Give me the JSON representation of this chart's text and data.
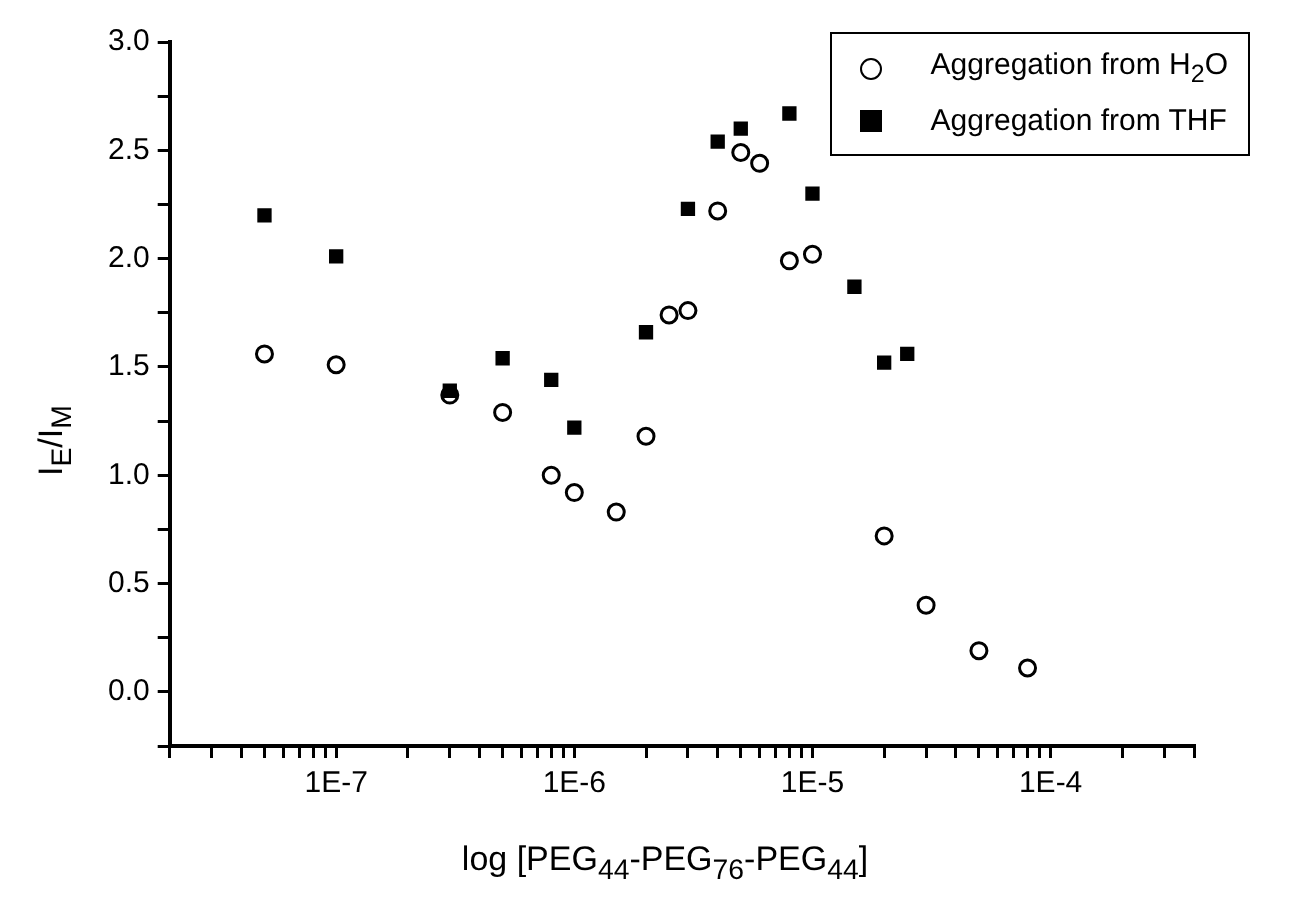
{
  "chart_data": {
    "type": "scatter",
    "xlabel": "log [PEG$_{44}$-PEG$_{76}$-PEG$_{44}$]",
    "ylabel": "I$_{E}$/I$_{M}$",
    "log": "x",
    "xlim": [
      2e-08,
      0.0004
    ],
    "xticks": [
      {
        "value": 2e-08,
        "label": null
      },
      {
        "value": 3e-08,
        "label": null
      },
      {
        "value": 4e-08,
        "label": null
      },
      {
        "value": 5e-08,
        "label": null
      },
      {
        "value": 6e-08,
        "label": null
      },
      {
        "value": 7e-08,
        "label": null
      },
      {
        "value": 8e-08,
        "label": null
      },
      {
        "value": 9e-08,
        "label": null
      },
      {
        "value": 1e-07,
        "label": "1E-7"
      },
      {
        "value": 2e-07,
        "label": null
      },
      {
        "value": 3e-07,
        "label": null
      },
      {
        "value": 4e-07,
        "label": null
      },
      {
        "value": 5e-07,
        "label": null
      },
      {
        "value": 6e-07,
        "label": null
      },
      {
        "value": 7e-07,
        "label": null
      },
      {
        "value": 8e-07,
        "label": null
      },
      {
        "value": 9e-07,
        "label": null
      },
      {
        "value": 1e-06,
        "label": "1E-6"
      },
      {
        "value": 2e-06,
        "label": null
      },
      {
        "value": 3e-06,
        "label": null
      },
      {
        "value": 4e-06,
        "label": null
      },
      {
        "value": 5e-06,
        "label": null
      },
      {
        "value": 6e-06,
        "label": null
      },
      {
        "value": 7e-06,
        "label": null
      },
      {
        "value": 8e-06,
        "label": null
      },
      {
        "value": 9e-06,
        "label": null
      },
      {
        "value": 1e-05,
        "label": "1E-5"
      },
      {
        "value": 2e-05,
        "label": null
      },
      {
        "value": 3e-05,
        "label": null
      },
      {
        "value": 4e-05,
        "label": null
      },
      {
        "value": 5e-05,
        "label": null
      },
      {
        "value": 6e-05,
        "label": null
      },
      {
        "value": 7e-05,
        "label": null
      },
      {
        "value": 8e-05,
        "label": null
      },
      {
        "value": 9e-05,
        "label": null
      },
      {
        "value": 0.0001,
        "label": "1E-4"
      },
      {
        "value": 0.0002,
        "label": null
      },
      {
        "value": 0.0003,
        "label": null
      },
      {
        "value": 0.0004,
        "label": null
      }
    ],
    "ylim": [
      -0.25,
      3.0
    ],
    "yticks": [
      {
        "value": -0.25,
        "label": null
      },
      {
        "value": 0,
        "label": "0.0"
      },
      {
        "value": 0.25,
        "label": null
      },
      {
        "value": 0.5,
        "label": "0.5"
      },
      {
        "value": 0.75,
        "label": null
      },
      {
        "value": 1,
        "label": "1.0"
      },
      {
        "value": 1.25,
        "label": null
      },
      {
        "value": 1.5,
        "label": "1.5"
      },
      {
        "value": 1.75,
        "label": null
      },
      {
        "value": 2,
        "label": "2.0"
      },
      {
        "value": 2.25,
        "label": null
      },
      {
        "value": 2.5,
        "label": "2.5"
      },
      {
        "value": 2.75,
        "label": null
      },
      {
        "value": 3,
        "label": "3.0"
      }
    ],
    "grid": false,
    "legend": "top right",
    "series": [
      {
        "name": "Aggregation from H$_{2}$O",
        "color": "#000000",
        "marker": "circle",
        "x": [
          5e-08,
          1e-07,
          3e-07,
          5e-07,
          8e-07,
          1e-06,
          1.5e-06,
          2e-06,
          2.5e-06,
          3e-06,
          4e-06,
          5e-06,
          6e-06,
          8e-06,
          1e-05,
          2e-05,
          3e-05,
          5e-05,
          8e-05
        ],
        "values": [
          1.56,
          1.51,
          1.37,
          1.29,
          1.0,
          0.92,
          0.83,
          1.18,
          1.74,
          1.76,
          2.22,
          2.49,
          2.44,
          1.99,
          2.02,
          0.72,
          0.4,
          0.19,
          0.11
        ]
      },
      {
        "name": "Aggregation from THF",
        "color": "#000000",
        "marker": "square",
        "x": [
          5e-08,
          1e-07,
          3e-07,
          5e-07,
          8e-07,
          1e-06,
          2e-06,
          3e-06,
          4e-06,
          5e-06,
          8e-06,
          1e-05,
          1.5e-05,
          2e-05,
          2.5e-05
        ],
        "values": [
          2.2,
          2.01,
          1.39,
          1.54,
          1.44,
          1.22,
          1.66,
          2.23,
          2.54,
          2.6,
          2.67,
          2.3,
          1.87,
          1.52,
          1.56
        ]
      }
    ]
  }
}
